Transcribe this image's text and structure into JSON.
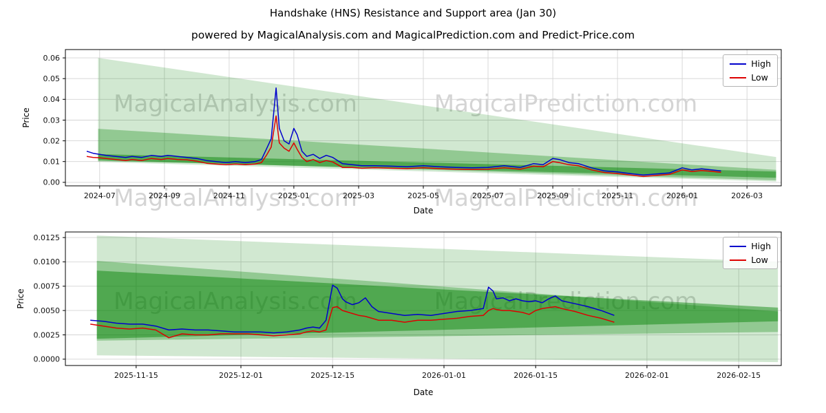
{
  "title": "Handshake (HNS) Resistance and Support area (Jan 30)",
  "subtitle": "powered by MagicalAnalysis.com and MagicalPrediction.com and Predict-Price.com",
  "watermarks": [
    "MagicalAnalysis.com",
    "MagicalPrediction.com"
  ],
  "colors": {
    "high": "#0000cc",
    "low": "#dd0000",
    "band": "#008000"
  },
  "chart_data": [
    {
      "type": "line",
      "title": "",
      "xlabel": "Date",
      "ylabel": "Price",
      "legend_position": "upper right",
      "grid": true,
      "xlim": [
        -1.06,
        21.06
      ],
      "ylim": [
        -0.0017,
        0.064
      ],
      "x_ticks": [
        {
          "v": 0,
          "label": "2024-07"
        },
        {
          "v": 2,
          "label": "2024-09"
        },
        {
          "v": 4,
          "label": "2024-11"
        },
        {
          "v": 6,
          "label": "2025-01"
        },
        {
          "v": 8,
          "label": "2025-03"
        },
        {
          "v": 10,
          "label": "2025-05"
        },
        {
          "v": 12,
          "label": "2025-07"
        },
        {
          "v": 14,
          "label": "2025-09"
        },
        {
          "v": 16,
          "label": "2025-11"
        },
        {
          "v": 18,
          "label": "2026-01"
        },
        {
          "v": 20,
          "label": "2026-03"
        }
      ],
      "y_ticks": [
        {
          "v": 0.0,
          "label": "0.00"
        },
        {
          "v": 0.01,
          "label": "0.01"
        },
        {
          "v": 0.02,
          "label": "0.02"
        },
        {
          "v": 0.03,
          "label": "0.03"
        },
        {
          "v": 0.04,
          "label": "0.04"
        },
        {
          "v": 0.05,
          "label": "0.05"
        },
        {
          "v": 0.06,
          "label": "0.06"
        }
      ],
      "x_unit": "months since 2024-07",
      "x": [
        -0.4,
        -0.2,
        0,
        0.2,
        0.5,
        0.8,
        1.0,
        1.3,
        1.6,
        1.9,
        2.1,
        2.4,
        2.7,
        3.0,
        3.3,
        3.6,
        3.9,
        4.2,
        4.5,
        4.8,
        5.0,
        5.15,
        5.3,
        5.45,
        5.55,
        5.7,
        5.85,
        6.0,
        6.1,
        6.25,
        6.4,
        6.6,
        6.8,
        7.0,
        7.2,
        7.5,
        7.8,
        8.1,
        8.5,
        9.0,
        9.5,
        10.0,
        10.5,
        11.0,
        11.5,
        12.0,
        12.5,
        13.0,
        13.4,
        13.7,
        14.0,
        14.2,
        14.5,
        14.8,
        15.2,
        15.6,
        16.0,
        16.4,
        16.8,
        17.2,
        17.6,
        18.0,
        18.3,
        18.6,
        18.9,
        19.2
      ],
      "series": [
        {
          "name": "High",
          "color": "#0000cc",
          "values": [
            0.015,
            0.014,
            0.0135,
            0.013,
            0.0125,
            0.012,
            0.0125,
            0.012,
            0.013,
            0.0125,
            0.013,
            0.0125,
            0.012,
            0.0115,
            0.0105,
            0.01,
            0.0095,
            0.01,
            0.0095,
            0.01,
            0.011,
            0.016,
            0.021,
            0.0455,
            0.026,
            0.02,
            0.0185,
            0.026,
            0.023,
            0.015,
            0.0125,
            0.0135,
            0.0115,
            0.013,
            0.012,
            0.009,
            0.0085,
            0.008,
            0.008,
            0.0078,
            0.0075,
            0.008,
            0.0075,
            0.0072,
            0.007,
            0.0072,
            0.008,
            0.0072,
            0.009,
            0.0085,
            0.0115,
            0.011,
            0.0095,
            0.009,
            0.007,
            0.0055,
            0.005,
            0.0042,
            0.0035,
            0.004,
            0.0045,
            0.007,
            0.006,
            0.0065,
            0.006,
            0.0055
          ]
        },
        {
          "name": "Low",
          "color": "#dd0000",
          "values": [
            0.0125,
            0.012,
            0.0118,
            0.0115,
            0.011,
            0.0105,
            0.011,
            0.0105,
            0.0115,
            0.011,
            0.0115,
            0.011,
            0.0108,
            0.0102,
            0.0092,
            0.0088,
            0.0085,
            0.0088,
            0.0085,
            0.0088,
            0.0095,
            0.013,
            0.017,
            0.032,
            0.019,
            0.0165,
            0.015,
            0.019,
            0.016,
            0.012,
            0.01,
            0.011,
            0.0095,
            0.0105,
            0.0098,
            0.0072,
            0.0072,
            0.0068,
            0.007,
            0.0068,
            0.0066,
            0.007,
            0.0066,
            0.0063,
            0.0062,
            0.0063,
            0.007,
            0.0063,
            0.0078,
            0.0075,
            0.01,
            0.0095,
            0.0085,
            0.008,
            0.006,
            0.0047,
            0.0042,
            0.0035,
            0.0028,
            0.0033,
            0.0038,
            0.006,
            0.0052,
            0.0057,
            0.0053,
            0.0048
          ]
        }
      ],
      "bands": [
        {
          "name": "resistance-support-outer",
          "alpha": 0.18,
          "points": [
            [
              -0.05,
              0.06
            ],
            [
              20.9,
              0.0122
            ],
            [
              20.9,
              0.0004
            ],
            [
              -0.05,
              0.0098
            ]
          ]
        },
        {
          "name": "resistance-support-mid",
          "alpha": 0.3,
          "points": [
            [
              -0.05,
              0.0258
            ],
            [
              20.9,
              0.006
            ],
            [
              20.9,
              0.001
            ],
            [
              -0.05,
              0.0108
            ]
          ]
        },
        {
          "name": "resistance-support-inner",
          "alpha": 0.45,
          "points": [
            [
              -0.05,
              0.0136
            ],
            [
              20.9,
              0.0052
            ],
            [
              20.9,
              0.0022
            ],
            [
              -0.05,
              0.0104
            ]
          ]
        }
      ]
    },
    {
      "type": "line",
      "title": "",
      "xlabel": "Date",
      "ylabel": "Price",
      "legend_position": "upper right",
      "grid": true,
      "xlim": [
        -10.8,
        98.5
      ],
      "ylim": [
        -0.00065,
        0.01307
      ],
      "x_ticks": [
        {
          "v": 0,
          "label": "2025-11-15"
        },
        {
          "v": 16,
          "label": "2025-12-01"
        },
        {
          "v": 30,
          "label": "2025-12-15"
        },
        {
          "v": 47,
          "label": "2026-01-01"
        },
        {
          "v": 61,
          "label": "2026-01-15"
        },
        {
          "v": 78,
          "label": "2026-02-01"
        },
        {
          "v": 92,
          "label": "2026-02-15"
        }
      ],
      "y_ticks": [
        {
          "v": 0.0,
          "label": "0.0000"
        },
        {
          "v": 0.0025,
          "label": "0.0025"
        },
        {
          "v": 0.005,
          "label": "0.0050"
        },
        {
          "v": 0.0075,
          "label": "0.0075"
        },
        {
          "v": 0.01,
          "label": "0.0100"
        },
        {
          "v": 0.0125,
          "label": "0.0125"
        }
      ],
      "x_unit": "days since 2025-11-15",
      "x": [
        -7,
        -5,
        -3,
        -1,
        1,
        3,
        5,
        7,
        9,
        11,
        13,
        15,
        17,
        19,
        21,
        23,
        25,
        26,
        27,
        28,
        29,
        30,
        30.7,
        31.5,
        32,
        33,
        34,
        35,
        36,
        37,
        38,
        39,
        41,
        43,
        45,
        47,
        49,
        51,
        53,
        53.8,
        54.5,
        55,
        56,
        57,
        58,
        59,
        60,
        61,
        62,
        63,
        64,
        65,
        67,
        69,
        71,
        73
      ],
      "series": [
        {
          "name": "High",
          "color": "#0000cc",
          "values": [
            0.004,
            0.0039,
            0.0037,
            0.0036,
            0.0036,
            0.0034,
            0.003,
            0.0031,
            0.003,
            0.003,
            0.0029,
            0.0028,
            0.0028,
            0.0028,
            0.0027,
            0.0028,
            0.003,
            0.0032,
            0.0033,
            0.0032,
            0.004,
            0.0076,
            0.0073,
            0.0062,
            0.0059,
            0.0056,
            0.0058,
            0.0063,
            0.0054,
            0.0049,
            0.0048,
            0.0047,
            0.0045,
            0.0046,
            0.0045,
            0.0047,
            0.0049,
            0.005,
            0.0052,
            0.0074,
            0.007,
            0.0062,
            0.0063,
            0.006,
            0.0062,
            0.006,
            0.0059,
            0.006,
            0.0058,
            0.0062,
            0.0065,
            0.006,
            0.0057,
            0.0054,
            0.005,
            0.0045
          ]
        },
        {
          "name": "Low",
          "color": "#dd0000",
          "values": [
            0.0036,
            0.0034,
            0.0032,
            0.0031,
            0.0032,
            0.003,
            0.0022,
            0.0026,
            0.0025,
            0.0025,
            0.0026,
            0.0026,
            0.0026,
            0.0025,
            0.0024,
            0.0025,
            0.0026,
            0.0028,
            0.0029,
            0.0028,
            0.003,
            0.0053,
            0.0054,
            0.005,
            0.0049,
            0.0047,
            0.0045,
            0.0044,
            0.0042,
            0.004,
            0.004,
            0.004,
            0.0038,
            0.004,
            0.004,
            0.0041,
            0.0042,
            0.0044,
            0.0045,
            0.005,
            0.0052,
            0.0051,
            0.005,
            0.005,
            0.0049,
            0.0048,
            0.0046,
            0.005,
            0.0052,
            0.0053,
            0.0054,
            0.0052,
            0.0049,
            0.0045,
            0.0042,
            0.0038
          ]
        }
      ],
      "bands": [
        {
          "name": "resistance-support-outer",
          "alpha": 0.18,
          "points": [
            [
              -6,
              0.0127
            ],
            [
              98,
              0.01
            ],
            [
              98,
              -0.0003
            ],
            [
              -6,
              0.0004
            ]
          ]
        },
        {
          "name": "resistance-support-mid",
          "alpha": 0.3,
          "points": [
            [
              -6,
              0.0101
            ],
            [
              98,
              0.0049
            ],
            [
              98,
              0.0028
            ],
            [
              -6,
              0.0019
            ]
          ]
        },
        {
          "name": "resistance-support-inner",
          "alpha": 0.45,
          "points": [
            [
              -6,
              0.0091
            ],
            [
              98,
              0.0053
            ],
            [
              98,
              0.0039
            ],
            [
              -6,
              0.0021
            ]
          ]
        }
      ]
    }
  ]
}
